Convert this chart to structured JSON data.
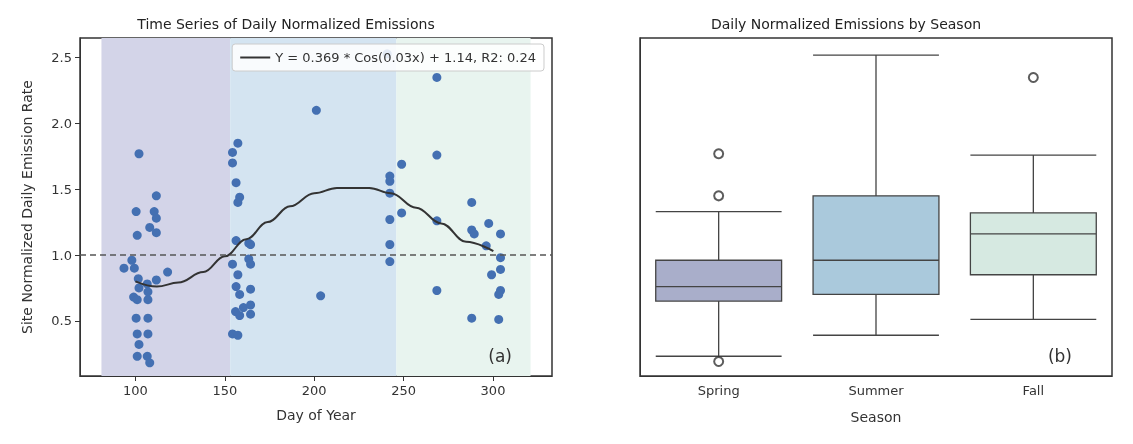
{
  "chart_data": [
    {
      "type": "scatter",
      "title": "Time Series of Daily Normalized Emissions",
      "xlabel": "Day of Year",
      "ylabel": "Site Normalized Daily Emission Rate",
      "xlim": [
        69,
        333
      ],
      "ylim": [
        0.08,
        2.65
      ],
      "xticks": [
        100,
        150,
        200,
        250,
        300
      ],
      "yticks": [
        0.5,
        {
          "value": 1,
          "label": "1.0"
        },
        1.5,
        {
          "value": 2,
          "label": "2.0"
        },
        2.5
      ],
      "grid": false,
      "legend": "top right",
      "series": [
        {
          "type": "scatter",
          "color": "#4470b2",
          "marker": "circle",
          "x": [
            102,
            100.4,
            101,
            111.7,
            110.5,
            111.7,
            108,
            111.7,
            98,
            93.6,
            99.4,
            118,
            101.6,
            111.7,
            106.6,
            102,
            107,
            99,
            101,
            107,
            100.4,
            107,
            101,
            107,
            102,
            101,
            106.6,
            108,
            157.3,
            154.3,
            154.3,
            156.3,
            158.3,
            157.3,
            156.3,
            163.4,
            164.4,
            154.3,
            163.4,
            164.4,
            157.3,
            156.3,
            158.3,
            164.4,
            156,
            158.3,
            160.4,
            164.4,
            164.4,
            154.3,
            157.3,
            201.2,
            203.6,
            240.8,
            242.3,
            242.3,
            242.3,
            242.3,
            242.3,
            242.3,
            248.9,
            248.9,
            268.6,
            268.6,
            268.6,
            268.6,
            288.1,
            288.1,
            289.5,
            288.1,
            297.6,
            296.2,
            304.2,
            304.2,
            304.2,
            299.2,
            304.2,
            303.2,
            303.2
          ],
          "values": [
            1.77,
            1.33,
            1.15,
            1.45,
            1.33,
            1.28,
            1.21,
            1.17,
            0.96,
            0.9,
            0.9,
            0.87,
            0.82,
            0.81,
            0.78,
            0.75,
            0.72,
            0.68,
            0.66,
            0.66,
            0.52,
            0.52,
            0.4,
            0.4,
            0.32,
            0.23,
            0.23,
            0.18,
            1.85,
            1.78,
            1.7,
            1.55,
            1.44,
            1.4,
            1.11,
            1.09,
            1.08,
            0.93,
            0.97,
            0.93,
            0.85,
            0.76,
            0.7,
            0.74,
            0.57,
            0.54,
            0.6,
            0.62,
            0.55,
            0.4,
            0.39,
            2.1,
            0.69,
            2.53,
            1.6,
            1.56,
            1.47,
            1.27,
            1.08,
            0.95,
            1.69,
            1.32,
            2.35,
            1.76,
            1.26,
            0.73,
            1.4,
            1.19,
            1.16,
            0.52,
            1.24,
            1.07,
            1.16,
            0.98,
            0.89,
            0.85,
            0.73,
            0.7,
            0.51
          ]
        },
        {
          "type": "line",
          "name": "Y = 0.369 * Cos(0.03x) + 1.14, R2: 0.24",
          "color": "#333333",
          "line_style": "solid",
          "x": [
            100,
            112,
            124,
            138,
            150,
            162,
            174,
            186.5,
            200,
            212.7,
            230.8,
            242.9,
            257,
            271,
            285,
            300.2
          ],
          "values": [
            0.8,
            0.76,
            0.79,
            0.87,
            0.99,
            1.12,
            1.25,
            1.37,
            1.47,
            1.51,
            1.51,
            1.47,
            1.36,
            1.24,
            1.1,
            1.03
          ]
        }
      ],
      "bands": [
        {
          "axis": "x",
          "from": 81,
          "to": 153,
          "color": "#d3d4e8"
        },
        {
          "axis": "x",
          "from": 153,
          "to": 246,
          "color": "#d4e4f1"
        },
        {
          "axis": "x",
          "from": 246,
          "to": 321,
          "color": "#e8f4ef"
        }
      ],
      "ref_lines": [
        {
          "axis": "y",
          "value": 1,
          "color": "#555555",
          "line_style": "dashed"
        }
      ],
      "annotations": [
        "(a)"
      ]
    },
    {
      "type": "box",
      "title": "Daily Normalized Emissions by Season",
      "xlabel": "Season",
      "categories": [
        "Spring",
        "Summer",
        "Fall"
      ],
      "colors": [
        "#a9aeca",
        "#aac9dc",
        "#d6e9e1"
      ],
      "ylim": [
        0.08,
        2.65
      ],
      "tick_labels": "x",
      "grid": false,
      "boxes": [
        {
          "low": 0.23,
          "q1": 0.65,
          "median": 0.76,
          "q3": 0.96,
          "high": 1.33,
          "outliers": [
            1.77,
            1.45,
            0.19
          ]
        },
        {
          "low": 0.39,
          "q1": 0.7,
          "median": 0.96,
          "q3": 1.45,
          "high": 2.52
        },
        {
          "low": 0.51,
          "q1": 0.85,
          "median": 1.16,
          "q3": 1.32,
          "high": 1.76,
          "outliers": [
            2.35
          ]
        }
      ],
      "annotations": [
        "(b)"
      ]
    }
  ]
}
